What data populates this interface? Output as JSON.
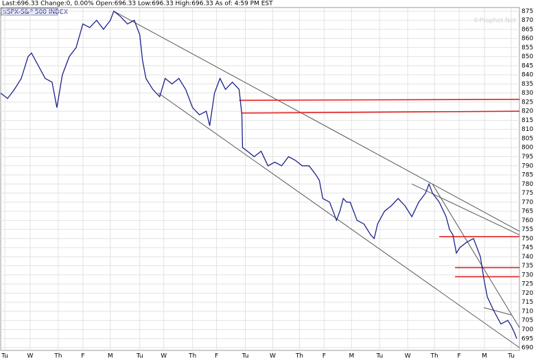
{
  "chart_data": {
    "type": "line",
    "title": "Last:696.33  Change:0, 0.00%  Open:696.33  Low:696.33  High:696.33  As of: 4:59 PM EST",
    "watermark": "©Prophet.Net",
    "grid": true,
    "x": [
      0,
      10,
      20,
      30,
      40,
      45,
      55,
      65,
      75,
      82,
      90,
      100,
      110,
      120,
      130,
      140,
      150,
      160,
      165,
      175,
      185,
      195,
      203,
      207,
      212,
      222,
      232,
      240,
      250,
      260,
      270,
      280,
      290,
      300,
      305,
      312,
      320,
      328,
      338,
      348,
      352,
      353,
      360,
      370,
      380,
      390,
      400,
      410,
      420,
      430,
      440,
      450,
      460,
      465,
      470,
      480,
      490,
      495,
      500,
      505,
      510,
      520,
      530,
      540,
      545,
      550,
      560,
      570,
      580,
      590,
      600,
      610,
      620,
      625,
      630,
      640,
      650,
      655,
      660,
      665,
      670,
      680,
      690,
      700,
      705,
      710,
      720,
      730,
      740,
      745,
      750,
      753
    ],
    "series": [
      {
        "name": "$SPX-S&P 500 INDEX",
        "color": "#1a1f8c",
        "values": [
          830,
          827,
          832,
          838,
          850,
          852,
          845,
          838,
          836,
          822,
          840,
          850,
          855,
          868,
          866,
          870,
          865,
          870,
          875,
          872,
          868,
          870,
          862,
          848,
          838,
          832,
          828,
          838,
          835,
          838,
          832,
          822,
          818,
          820,
          812,
          830,
          838,
          832,
          836,
          832,
          818,
          800,
          798,
          795,
          798,
          790,
          792,
          790,
          795,
          793,
          790,
          790,
          785,
          782,
          772,
          770,
          760,
          765,
          772,
          770,
          770,
          760,
          758,
          752,
          750,
          758,
          765,
          768,
          772,
          768,
          762,
          770,
          775,
          780,
          775,
          770,
          762,
          755,
          752,
          742,
          745,
          748,
          750,
          740,
          728,
          718,
          710,
          703,
          705,
          702,
          698,
          695
        ]
      }
    ],
    "lines": [
      {
        "color": "#555555",
        "x": [
          165,
          757
        ],
        "y": [
          875,
          754
        ]
      },
      {
        "color": "#555555",
        "x": [
          230,
          757
        ],
        "y": [
          830,
          690
        ]
      },
      {
        "color": "#555555",
        "x": [
          600,
          757
        ],
        "y": [
          780,
          752
        ]
      },
      {
        "color": "#555555",
        "x": [
          630,
          757
        ],
        "y": [
          780,
          701
        ]
      },
      {
        "color": "#555555",
        "x": [
          705,
          745
        ],
        "y": [
          712,
          708
        ]
      },
      {
        "color": "#e02020",
        "x": [
          348,
          757
        ],
        "y": [
          826,
          826.5
        ]
      },
      {
        "color": "#e02020",
        "x": [
          352,
          757
        ],
        "y": [
          819,
          820
        ]
      },
      {
        "color": "#e02020",
        "x": [
          640,
          757
        ],
        "y": [
          751,
          751
        ]
      },
      {
        "color": "#e02020",
        "x": [
          663,
          757
        ],
        "y": [
          734,
          734
        ]
      },
      {
        "color": "#e02020",
        "x": [
          663,
          757
        ],
        "y": [
          729,
          729
        ]
      }
    ],
    "xlim": [
      0,
      757
    ],
    "xticks": [
      {
        "value": 6,
        "label": "Tu"
      },
      {
        "value": 43,
        "label": "W"
      },
      {
        "value": 84,
        "label": "Th"
      },
      {
        "value": 120,
        "label": "F"
      },
      {
        "value": 160,
        "label": "M"
      },
      {
        "value": 203,
        "label": "Tu"
      },
      {
        "value": 238,
        "label": "W"
      },
      {
        "value": 280,
        "label": "Th"
      },
      {
        "value": 315,
        "label": "F"
      },
      {
        "value": 357,
        "label": "Tu"
      },
      {
        "value": 397,
        "label": "W"
      },
      {
        "value": 436,
        "label": "Th"
      },
      {
        "value": 472,
        "label": "F"
      },
      {
        "value": 512,
        "label": "M"
      },
      {
        "value": 553,
        "label": "Tu"
      },
      {
        "value": 594,
        "label": "W"
      },
      {
        "value": 633,
        "label": "Th"
      },
      {
        "value": 669,
        "label": "F"
      },
      {
        "value": 706,
        "label": "M"
      },
      {
        "value": 745,
        "label": "Tu"
      }
    ],
    "ylim": [
      688.5,
      877
    ],
    "yticks": [
      690,
      695,
      700,
      705,
      710,
      715,
      720,
      725,
      730,
      735,
      740,
      745,
      750,
      755,
      760,
      765,
      770,
      775,
      780,
      785,
      790,
      795,
      800,
      805,
      810,
      815,
      820,
      825,
      830,
      835,
      840,
      845,
      850,
      855,
      860,
      865,
      870,
      875
    ]
  }
}
